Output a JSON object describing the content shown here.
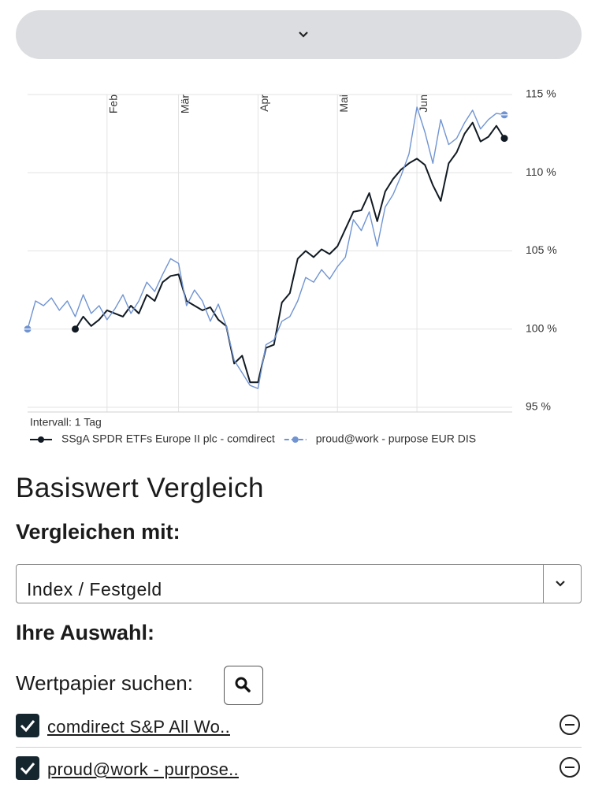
{
  "chart_data": {
    "type": "line",
    "categories": [
      null,
      null,
      null,
      null,
      null,
      null,
      null,
      null,
      null,
      null,
      "Feb",
      null,
      null,
      null,
      null,
      null,
      null,
      null,
      null,
      "Mär",
      null,
      null,
      null,
      null,
      null,
      null,
      null,
      null,
      null,
      "Apr",
      null,
      null,
      null,
      null,
      null,
      null,
      null,
      null,
      null,
      "Mai",
      null,
      null,
      null,
      null,
      null,
      null,
      null,
      null,
      null,
      "Jun",
      null,
      null,
      null,
      null,
      null,
      null,
      null,
      null,
      null,
      null,
      null
    ],
    "series": [
      {
        "name": "SSgA SPDR ETFs Europe II plc - comdirect",
        "color": "#111a22",
        "values": [
          null,
          null,
          null,
          null,
          null,
          null,
          100.0,
          100.8,
          100.2,
          100.6,
          101.2,
          101.0,
          100.8,
          101.5,
          101.0,
          102.2,
          101.8,
          103.0,
          103.4,
          103.5,
          101.8,
          101.5,
          101.2,
          101.4,
          100.6,
          100.2,
          97.8,
          98.3,
          96.6,
          96.6,
          98.8,
          99.0,
          101.7,
          102.3,
          104.5,
          105.0,
          104.6,
          105.1,
          104.8,
          105.3,
          106.4,
          107.5,
          107.6,
          108.7,
          106.9,
          108.8,
          109.6,
          110.2,
          110.6,
          110.9,
          110.5,
          109.2,
          108.2,
          110.6,
          111.3,
          112.5,
          113.2,
          112.0,
          112.3,
          113.0,
          112.2
        ]
      },
      {
        "name": "proud@work - purpose EUR DIS",
        "color": "#7094d2",
        "values": [
          100.0,
          101.8,
          101.5,
          102.0,
          101.2,
          101.8,
          100.8,
          102.2,
          101.0,
          101.5,
          100.6,
          101.3,
          102.2,
          101.0,
          101.8,
          103.0,
          102.4,
          103.5,
          104.5,
          104.2,
          101.5,
          102.5,
          101.8,
          100.5,
          101.6,
          100.2,
          98.0,
          97.2,
          96.4,
          96.2,
          99.0,
          99.3,
          100.5,
          100.8,
          101.8,
          103.3,
          103.0,
          103.8,
          103.2,
          104.0,
          104.6,
          107.0,
          106.3,
          107.5,
          105.3,
          107.8,
          108.6,
          109.8,
          111.2,
          114.2,
          112.6,
          110.6,
          113.4,
          111.8,
          112.2,
          113.2,
          114.0,
          112.8,
          113.4,
          113.8,
          113.7
        ]
      }
    ],
    "ylim": [
      95,
      115
    ],
    "yticks": [
      {
        "value": 95,
        "label": "95 %"
      },
      {
        "value": 100,
        "label": "100 %"
      },
      {
        "value": 105,
        "label": "105 %"
      },
      {
        "value": 110,
        "label": "110 %"
      },
      {
        "value": 115,
        "label": "115 %"
      }
    ],
    "grid": true,
    "annotation": "Intervall: 1 Tag"
  },
  "section": {
    "title": "Basiswert Vergleich",
    "compare_label": "Vergleichen mit:",
    "compare_value": "Index / Festgeld",
    "selection_label": "Ihre Auswahl:",
    "search_label": "Wertpapier suchen:",
    "items": [
      "comdirect S&P All Wo..",
      "proud@work - purpose.."
    ]
  }
}
